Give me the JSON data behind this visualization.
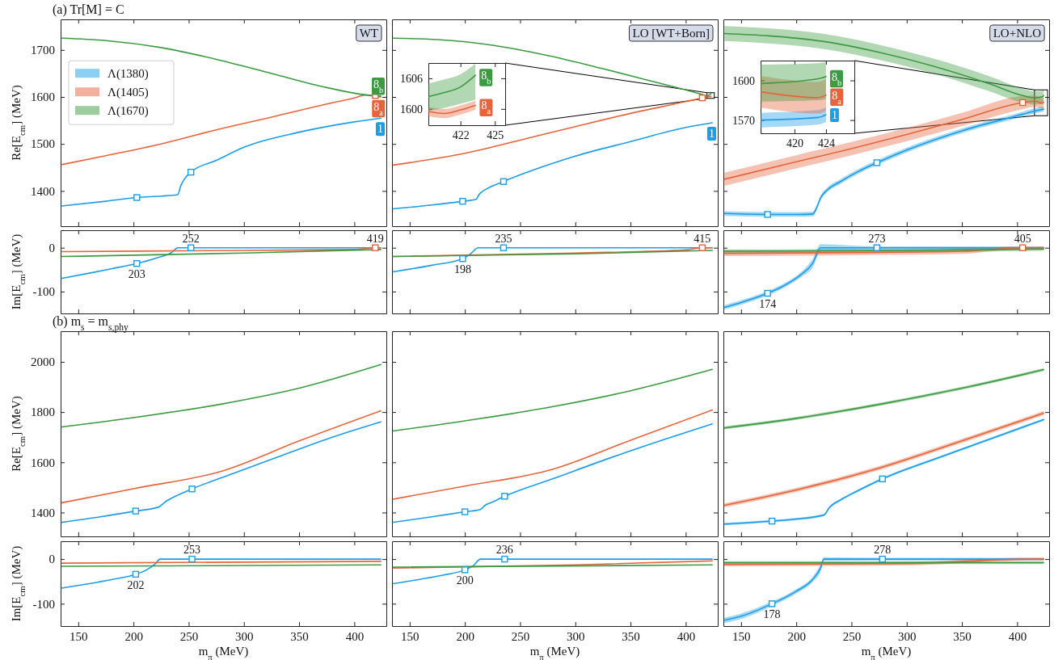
{
  "chart_data": [
    {
      "type": "line",
      "title": "(a) Tr[M] = C",
      "subtitle": "WT",
      "ylabel": "Re[E$_{cm}$] (MeV)",
      "xlim": [
        134,
        429
      ],
      "xticks": [
        150,
        200,
        250,
        300,
        350,
        400
      ],
      "ylim": [
        1325,
        1765
      ],
      "yticks": [
        1400,
        1500,
        1600,
        1700
      ],
      "tick_labels": "y",
      "legend": "left",
      "series": [
        {
          "name": "Λ(1380)",
          "color": "#1b9de8",
          "x": [
            135,
            175,
            203,
            225,
            240,
            243,
            247,
            252,
            275,
            300,
            350,
            400,
            424
          ],
          "values": [
            1368,
            1378,
            1386,
            1389,
            1392,
            1412,
            1428,
            1440,
            1465,
            1493,
            1525,
            1547,
            1555
          ]
        },
        {
          "name": "Λ(1405)",
          "color": "#e6643c",
          "x": [
            135,
            175,
            225,
            275,
            325,
            375,
            400,
            410,
            419,
            424
          ],
          "values": [
            1456,
            1475,
            1500,
            1530,
            1557,
            1585,
            1598,
            1604,
            1603,
            1602
          ]
        },
        {
          "name": "Λ(1670)",
          "color": "#3c9a42",
          "x": [
            135,
            175,
            225,
            275,
            325,
            375,
            400,
            424
          ],
          "values": [
            1725,
            1720,
            1705,
            1680,
            1650,
            1620,
            1608,
            1600
          ]
        },
        {
          "type": "scatter",
          "marker": "square",
          "color": "#1b9de8",
          "x": [
            203,
            252
          ],
          "values": [
            1386,
            1440
          ]
        },
        {
          "type": "scatter",
          "marker": "square",
          "color": "#e6643c",
          "x": [
            419
          ],
          "values": [
            1603
          ]
        }
      ],
      "annotations": [
        "1",
        "8$_{a}$",
        "8$_{b}$"
      ]
    },
    {
      "type": "line",
      "subtitle": "LO [WT+Born]",
      "xlim": [
        134,
        429
      ],
      "xticks": [
        150,
        200,
        250,
        300,
        350,
        400
      ],
      "ylim": [
        1325,
        1765
      ],
      "yticks": [
        1400,
        1500,
        1600,
        1700
      ],
      "tick_labels": false,
      "series": [
        {
          "color": "#1b9de8",
          "x": [
            135,
            170,
            198,
            210,
            213,
            218,
            235,
            275,
            300,
            350,
            400,
            424
          ],
          "values": [
            1362,
            1370,
            1378,
            1382,
            1393,
            1402,
            1420,
            1455,
            1474,
            1505,
            1535,
            1545
          ]
        },
        {
          "color": "#e6643c",
          "x": [
            135,
            200,
            250,
            300,
            350,
            400,
            415,
            419,
            423
          ],
          "values": [
            1455,
            1480,
            1508,
            1537,
            1565,
            1590,
            1598,
            1600,
            1601
          ]
        },
        {
          "color": "#3c9a42",
          "x": [
            135,
            175,
            225,
            275,
            325,
            375,
            400,
            415,
            419,
            423
          ],
          "values": [
            1725,
            1722,
            1710,
            1688,
            1660,
            1630,
            1615,
            1605,
            1602,
            1607
          ]
        },
        {
          "type": "scatter",
          "marker": "square",
          "color": "#1b9de8",
          "x": [
            198,
            235
          ],
          "values": [
            1378,
            1420
          ]
        },
        {
          "type": "scatter",
          "marker": "square",
          "color": "#e6643c",
          "x": [
            415
          ],
          "values": [
            1598
          ]
        }
      ],
      "annotations": [
        "1"
      ]
    },
    {
      "type": "line",
      "xlim": [
        419.2,
        425.9
      ],
      "xticks": [
        422,
        425
      ],
      "ylim": [
        1596.8,
        1609
      ],
      "yticks": [
        1600,
        1606
      ],
      "series": [
        {
          "color": "#e6643c",
          "x": [
            419.2,
            420.6,
            422,
            423.3
          ],
          "values": [
            1599.5,
            1599.1,
            1599.8,
            1600.7
          ],
          "lower": [
            1598.6,
            1598.2,
            1598.9,
            1599.8
          ],
          "upper": [
            1600.4,
            1600,
            1600.7,
            1601.6
          ]
        },
        {
          "color": "#3c9a42",
          "x": [
            419.2,
            420.6,
            422,
            423.3
          ],
          "values": [
            1602.4,
            1603.2,
            1604.3,
            1606.6
          ],
          "lower": [
            1599.6,
            1600.2,
            1601,
            1601.8
          ],
          "upper": [
            1605,
            1605.8,
            1606.8,
            1608.9
          ]
        }
      ],
      "annotations": [
        "8$_{a}$",
        "8$_{b}$"
      ]
    },
    {
      "type": "line",
      "subtitle": "LO+NLO",
      "xlim": [
        134,
        429
      ],
      "xticks": [
        150,
        200,
        250,
        300,
        350,
        400
      ],
      "ylim": [
        1325,
        1765
      ],
      "yticks": [
        1400,
        1500,
        1600,
        1700
      ],
      "tick_labels": false,
      "series": [
        {
          "color": "#1b9de8",
          "x": [
            135,
            175,
            200,
            215,
            218,
            222,
            228,
            240,
            255,
            273,
            300,
            350,
            400,
            416,
            424
          ],
          "values": [
            1352,
            1350,
            1350,
            1351,
            1362,
            1385,
            1402,
            1420,
            1440,
            1460,
            1487,
            1528,
            1560,
            1570,
            1574
          ],
          "lower": [
            1347,
            1345,
            1345,
            1346,
            1357,
            1380,
            1397,
            1415,
            1435,
            1455,
            1482,
            1523,
            1555,
            1565,
            1569
          ],
          "upper": [
            1357,
            1355,
            1355,
            1356,
            1367,
            1390,
            1407,
            1425,
            1445,
            1465,
            1492,
            1533,
            1565,
            1576,
            1580
          ]
        },
        {
          "color": "#e6643c",
          "x": [
            135,
            200,
            250,
            300,
            350,
            405,
            416,
            423,
            424
          ],
          "values": [
            1425,
            1462,
            1490,
            1520,
            1552,
            1588,
            1591,
            1587,
            1589
          ],
          "lower": [
            1411,
            1448,
            1476,
            1506,
            1538,
            1574,
            1579,
            1575,
            1577
          ],
          "upper": [
            1439,
            1476,
            1504,
            1534,
            1566,
            1602,
            1603,
            1599,
            1601
          ]
        },
        {
          "color": "#3c9a42",
          "x": [
            135,
            175,
            225,
            275,
            325,
            375,
            405,
            416,
            423,
            424
          ],
          "values": [
            1735,
            1730,
            1718,
            1695,
            1665,
            1628,
            1603,
            1598,
            1601,
            1603
          ],
          "lower": [
            1719,
            1714,
            1702,
            1679,
            1649,
            1612,
            1588,
            1584,
            1585,
            1586
          ],
          "upper": [
            1751,
            1746,
            1734,
            1711,
            1681,
            1644,
            1618,
            1612,
            1613,
            1614
          ]
        },
        {
          "type": "scatter",
          "marker": "square",
          "color": "#1b9de8",
          "x": [
            174,
            273
          ],
          "values": [
            1350,
            1460
          ]
        },
        {
          "type": "scatter",
          "marker": "square",
          "color": "#e6643c",
          "x": [
            405
          ],
          "values": [
            1588
          ]
        }
      ]
    },
    {
      "type": "line",
      "xlim": [
        415.7,
        427.6
      ],
      "xticks": [
        420,
        424
      ],
      "ylim": [
        1560,
        1615
      ],
      "yticks": [
        1570,
        1600
      ],
      "series": [
        {
          "color": "#1b9de8",
          "x": [
            415.7,
            423,
            424
          ],
          "values": [
            1570,
            1572,
            1574
          ],
          "lower": [
            1564.5,
            1566.5,
            1568.5
          ],
          "upper": [
            1575.5,
            1577.5,
            1579.5
          ]
        },
        {
          "color": "#e6643c",
          "x": [
            415.7,
            423,
            424
          ],
          "values": [
            1591.4,
            1586.9,
            1589
          ],
          "lower": [
            1579.4,
            1574.9,
            1577
          ],
          "upper": [
            1603.4,
            1598.9,
            1601
          ]
        },
        {
          "color": "#3c9a42",
          "x": [
            415.7,
            423,
            424
          ],
          "values": [
            1597.6,
            1601.2,
            1603
          ],
          "lower": [
            1584,
            1585,
            1586
          ],
          "upper": [
            1612,
            1613,
            1614
          ]
        }
      ],
      "annotations": [
        "1",
        "8$_{a}$",
        "8$_{b}$"
      ]
    },
    {
      "type": "line",
      "ylabel": "Im[E$_{cm}$] (MeV)",
      "xlim": [
        134,
        429
      ],
      "xticks": [
        150,
        200,
        250,
        300,
        350,
        400
      ],
      "ylim": [
        -150,
        40
      ],
      "yticks": [
        -100,
        0
      ],
      "tick_labels": "y",
      "series": [
        {
          "color": "#1b9de8",
          "x": [
            135,
            160,
            180,
            203,
            220,
            235,
            240,
            252,
            300,
            424
          ],
          "values": [
            -70,
            -58,
            -48,
            -36,
            -24,
            -10,
            0,
            0,
            0,
            0
          ]
        },
        {
          "color": "#e6643c",
          "x": [
            135,
            300,
            400,
            419,
            424
          ],
          "values": [
            -9,
            -6,
            -4,
            0,
            0
          ]
        },
        {
          "color": "#3c9a42",
          "x": [
            135,
            300,
            424
          ],
          "values": [
            -20,
            -12,
            -4
          ]
        },
        {
          "type": "scatter",
          "marker": "square",
          "color": "#1b9de8",
          "x": [
            203,
            252
          ],
          "values": [
            -36,
            0
          ]
        },
        {
          "type": "scatter",
          "marker": "square",
          "color": "#e6643c",
          "x": [
            419
          ],
          "values": [
            0
          ]
        }
      ],
      "annotations": [
        {
          "text": "203",
          "x": 203,
          "y": -36
        },
        {
          "text": "252",
          "x": 252,
          "y": 0
        },
        {
          "text": "419",
          "x": 419,
          "y": 0
        }
      ]
    },
    {
      "type": "line",
      "xlim": [
        134,
        429
      ],
      "xticks": [
        150,
        200,
        250,
        300,
        350,
        400
      ],
      "ylim": [
        -150,
        40
      ],
      "yticks": [
        -100,
        0
      ],
      "tick_labels": false,
      "series": [
        {
          "color": "#1b9de8",
          "x": [
            135,
            170,
            198,
            205,
            212,
            235,
            424
          ],
          "values": [
            -55,
            -40,
            -25,
            -14,
            0,
            0,
            0
          ]
        },
        {
          "color": "#e6643c",
          "x": [
            135,
            300,
            400,
            415,
            424
          ],
          "values": [
            -20,
            -12,
            -5,
            0,
            0
          ]
        },
        {
          "color": "#3c9a42",
          "x": [
            135,
            300,
            424
          ],
          "values": [
            -20,
            -14,
            -6
          ]
        },
        {
          "type": "scatter",
          "marker": "square",
          "color": "#1b9de8",
          "x": [
            198,
            235
          ],
          "values": [
            -25,
            0
          ]
        },
        {
          "type": "scatter",
          "marker": "square",
          "color": "#e6643c",
          "x": [
            415
          ],
          "values": [
            0
          ]
        }
      ],
      "annotations": [
        {
          "text": "198",
          "x": 198,
          "y": -25
        },
        {
          "text": "235",
          "x": 235,
          "y": 0
        },
        {
          "text": "415",
          "x": 415,
          "y": 0
        }
      ]
    },
    {
      "type": "line",
      "xlim": [
        134,
        429
      ],
      "xticks": [
        150,
        200,
        250,
        300,
        350,
        400
      ],
      "ylim": [
        -150,
        40
      ],
      "yticks": [
        -100,
        0
      ],
      "tick_labels": false,
      "series": [
        {
          "color": "#1b9de8",
          "x": [
            135,
            150,
            174,
            190,
            205,
            215,
            222,
            273,
            424
          ],
          "values": [
            -136,
            -125,
            -104,
            -85,
            -60,
            -35,
            0,
            0,
            0
          ],
          "lower": [
            -141,
            -130,
            -109,
            -90,
            -66,
            -45,
            -8,
            -3,
            -3
          ],
          "upper": [
            -131,
            -120,
            -99,
            -80,
            -54,
            -25,
            8,
            3,
            3
          ]
        },
        {
          "color": "#e6643c",
          "x": [
            135,
            250,
            350,
            405,
            424
          ],
          "values": [
            -13,
            -11,
            -8,
            0,
            0
          ],
          "lower": [
            -19,
            -17,
            -14,
            -3,
            -3
          ],
          "upper": [
            -7,
            -5,
            -2,
            3,
            3
          ]
        },
        {
          "color": "#3c9a42",
          "x": [
            135,
            300,
            424
          ],
          "values": [
            -8,
            -6,
            -3
          ],
          "lower": [
            -12,
            -10,
            -7
          ],
          "upper": [
            -4,
            -2,
            1
          ]
        },
        {
          "type": "scatter",
          "marker": "square",
          "color": "#1b9de8",
          "x": [
            174,
            273
          ],
          "values": [
            -104,
            0
          ]
        },
        {
          "type": "scatter",
          "marker": "square",
          "color": "#e6643c",
          "x": [
            405
          ],
          "values": [
            0
          ]
        }
      ],
      "annotations": [
        {
          "text": "174",
          "x": 174,
          "y": -104
        },
        {
          "text": "273",
          "x": 273,
          "y": 0
        },
        {
          "text": "405",
          "x": 405,
          "y": 0
        }
      ]
    },
    {
      "type": "line",
      "title": "(b) m$_{s}$ = m$_{s,phy}$",
      "ylabel": "Re[E$_{cm}$] (MeV)",
      "xlim": [
        134,
        429
      ],
      "xticks": [
        150,
        200,
        250,
        300,
        350,
        400
      ],
      "ylim": [
        1305,
        2122
      ],
      "yticks": [
        1400,
        1600,
        1800,
        2000
      ],
      "tick_labels": "y",
      "series": [
        {
          "color": "#1b9de8",
          "x": [
            135,
            170,
            202,
            223,
            228,
            238,
            253,
            290,
            330,
            380,
            424
          ],
          "values": [
            1361,
            1383,
            1406,
            1422,
            1440,
            1465,
            1494,
            1555,
            1620,
            1700,
            1761
          ]
        },
        {
          "color": "#e6643c",
          "x": [
            135,
            200,
            280,
            350,
            424
          ],
          "values": [
            1439,
            1495,
            1565,
            1685,
            1805
          ]
        },
        {
          "color": "#3c9a42",
          "x": [
            135,
            200,
            280,
            350,
            424
          ],
          "values": [
            1741,
            1778,
            1832,
            1895,
            1989
          ]
        },
        {
          "type": "scatter",
          "marker": "square",
          "color": "#1b9de8",
          "x": [
            202,
            253
          ],
          "values": [
            1406,
            1494
          ]
        }
      ]
    },
    {
      "type": "line",
      "xlim": [
        134,
        429
      ],
      "xticks": [
        150,
        200,
        250,
        300,
        350,
        400
      ],
      "ylim": [
        1305,
        2122
      ],
      "yticks": [
        1400,
        1600,
        1800,
        2000
      ],
      "tick_labels": false,
      "series": [
        {
          "color": "#1b9de8",
          "x": [
            135,
            170,
            200,
            214,
            218,
            225,
            236,
            280,
            330,
            380,
            424
          ],
          "values": [
            1361,
            1383,
            1403,
            1412,
            1428,
            1442,
            1465,
            1535,
            1615,
            1690,
            1753
          ]
        },
        {
          "color": "#e6643c",
          "x": [
            135,
            200,
            280,
            350,
            424
          ],
          "values": [
            1453,
            1505,
            1573,
            1688,
            1808
          ]
        },
        {
          "color": "#3c9a42",
          "x": [
            135,
            200,
            280,
            350,
            424
          ],
          "values": [
            1725,
            1765,
            1822,
            1885,
            1970
          ]
        },
        {
          "type": "scatter",
          "marker": "square",
          "color": "#1b9de8",
          "x": [
            200,
            236
          ],
          "values": [
            1403,
            1465
          ]
        }
      ]
    },
    {
      "type": "line",
      "xlim": [
        134,
        429
      ],
      "xticks": [
        150,
        200,
        250,
        300,
        350,
        400
      ],
      "ylim": [
        1305,
        2122
      ],
      "yticks": [
        1400,
        1600,
        1800,
        2000
      ],
      "tick_labels": false,
      "series": [
        {
          "color": "#1b9de8",
          "x": [
            135,
            178,
            200,
            225,
            230,
            240,
            255,
            278,
            330,
            380,
            424
          ],
          "values": [
            1354,
            1366,
            1374,
            1390,
            1420,
            1450,
            1485,
            1534,
            1620,
            1700,
            1770
          ],
          "lower": [
            1349,
            1361,
            1369,
            1385,
            1415,
            1445,
            1480,
            1529,
            1615,
            1695,
            1765
          ],
          "upper": [
            1359,
            1371,
            1379,
            1395,
            1425,
            1455,
            1490,
            1539,
            1625,
            1705,
            1775
          ]
        },
        {
          "color": "#e6643c",
          "x": [
            135,
            200,
            278,
            350,
            424
          ],
          "values": [
            1429,
            1490,
            1581,
            1685,
            1796
          ],
          "lower": [
            1421,
            1482,
            1573,
            1677,
            1788
          ],
          "upper": [
            1437,
            1498,
            1589,
            1693,
            1804
          ]
        },
        {
          "color": "#3c9a42",
          "x": [
            135,
            200,
            278,
            350,
            424
          ],
          "values": [
            1737,
            1775,
            1833,
            1895,
            1969
          ],
          "lower": [
            1731,
            1769,
            1827,
            1889,
            1963
          ],
          "upper": [
            1743,
            1781,
            1839,
            1901,
            1975
          ]
        },
        {
          "type": "scatter",
          "marker": "square",
          "color": "#1b9de8",
          "x": [
            178,
            278
          ],
          "values": [
            1366,
            1534
          ]
        }
      ]
    },
    {
      "type": "line",
      "ylabel": "Im[E$_{cm}$] (MeV)",
      "xlabel": "m$_{π}$ (MeV)",
      "xlim": [
        134,
        429
      ],
      "xticks": [
        150,
        200,
        250,
        300,
        350,
        400
      ],
      "ylim": [
        -150,
        40
      ],
      "yticks": [
        -100,
        0
      ],
      "series": [
        {
          "color": "#1b9de8",
          "x": [
            135,
            160,
            180,
            202,
            212,
            220,
            224,
            253,
            424
          ],
          "values": [
            -65,
            -55,
            -46,
            -34,
            -24,
            -10,
            0,
            0,
            0
          ]
        },
        {
          "color": "#e6643c",
          "x": [
            135,
            424
          ],
          "values": [
            -9,
            -5
          ]
        },
        {
          "color": "#3c9a42",
          "x": [
            135,
            424
          ],
          "values": [
            -16,
            -13
          ]
        },
        {
          "type": "scatter",
          "marker": "square",
          "color": "#1b9de8",
          "x": [
            202,
            253
          ],
          "values": [
            -34,
            0
          ]
        }
      ],
      "annotations": [
        {
          "text": "202",
          "x": 202,
          "y": -34
        },
        {
          "text": "253",
          "x": 253,
          "y": 0
        }
      ]
    },
    {
      "type": "line",
      "xlabel": "m$_{π}$ (MeV)",
      "xlim": [
        134,
        429
      ],
      "xticks": [
        150,
        200,
        250,
        300,
        350,
        400
      ],
      "ylim": [
        -150,
        40
      ],
      "yticks": [
        -100,
        0
      ],
      "tick_labels": "x",
      "series": [
        {
          "color": "#1b9de8",
          "x": [
            135,
            160,
            180,
            200,
            208,
            214,
            236,
            424
          ],
          "values": [
            -55,
            -45,
            -36,
            -24,
            -14,
            0,
            0,
            0
          ]
        },
        {
          "color": "#e6643c",
          "x": [
            135,
            300,
            424
          ],
          "values": [
            -20,
            -13,
            -4
          ]
        },
        {
          "color": "#3c9a42",
          "x": [
            135,
            424
          ],
          "values": [
            -18,
            -13
          ]
        },
        {
          "type": "scatter",
          "marker": "square",
          "color": "#1b9de8",
          "x": [
            200,
            236
          ],
          "values": [
            -24,
            0
          ]
        }
      ],
      "annotations": [
        {
          "text": "200",
          "x": 200,
          "y": -24
        },
        {
          "text": "236",
          "x": 236,
          "y": 0
        }
      ]
    },
    {
      "type": "line",
      "xlabel": "m$_{π}$ (MeV)",
      "xlim": [
        134,
        429
      ],
      "xticks": [
        150,
        200,
        250,
        300,
        350,
        400
      ],
      "ylim": [
        -150,
        40
      ],
      "yticks": [
        -100,
        0
      ],
      "tick_labels": "x",
      "series": [
        {
          "color": "#1b9de8",
          "x": [
            135,
            150,
            178,
            200,
            215,
            222,
            225,
            278,
            424
          ],
          "values": [
            -137,
            -128,
            -100,
            -72,
            -45,
            -20,
            0,
            0,
            0
          ],
          "lower": [
            -143,
            -134,
            -105,
            -77,
            -51,
            -28,
            -4,
            -3,
            -3
          ],
          "upper": [
            -131,
            -122,
            -95,
            -67,
            -39,
            -12,
            4,
            3,
            3
          ]
        },
        {
          "color": "#e6643c",
          "x": [
            135,
            300,
            410,
            424
          ],
          "values": [
            -12,
            -10,
            0,
            0
          ],
          "lower": [
            -16,
            -14,
            -3,
            -3
          ],
          "upper": [
            -8,
            -6,
            3,
            3
          ]
        },
        {
          "color": "#3c9a42",
          "x": [
            135,
            424
          ],
          "values": [
            -8,
            -8
          ],
          "lower": [
            -11,
            -11
          ],
          "upper": [
            -5,
            -5
          ]
        },
        {
          "type": "scatter",
          "marker": "square",
          "color": "#1b9de8",
          "x": [
            178,
            278
          ],
          "values": [
            -100,
            0
          ]
        }
      ],
      "annotations": [
        {
          "text": "178",
          "x": 178,
          "y": -100
        },
        {
          "text": "278",
          "x": 278,
          "y": 0
        }
      ]
    }
  ]
}
